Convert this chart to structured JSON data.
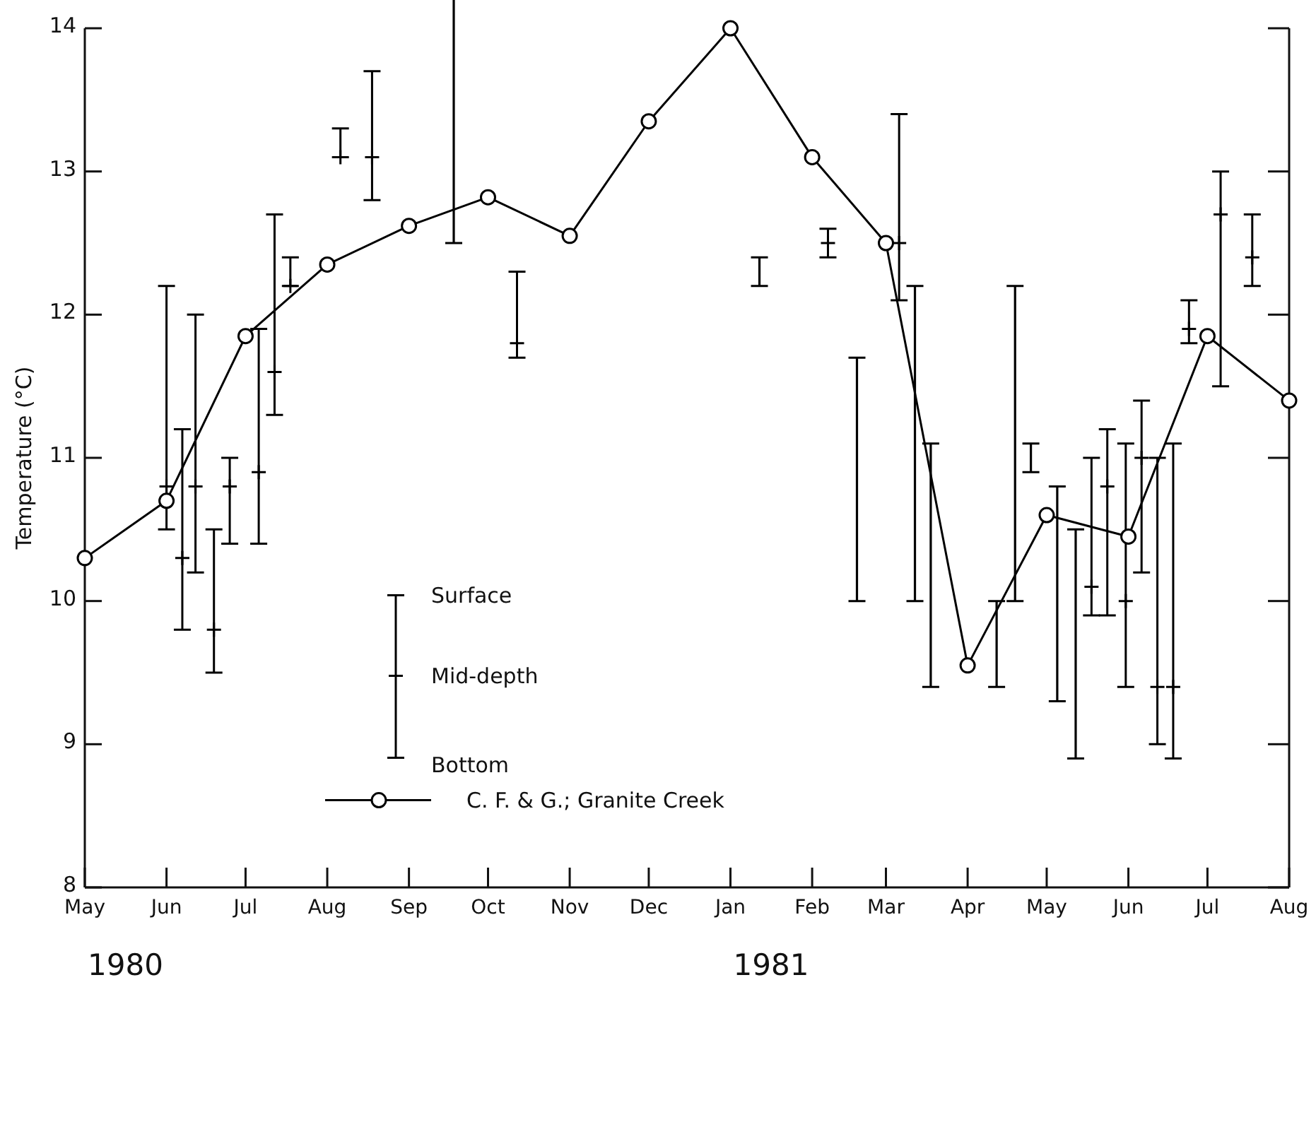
{
  "chart_data": {
    "type": "line",
    "ylabel": "Temperature (°C)",
    "xlim": [
      "1980-05-01",
      "1981-08-01"
    ],
    "xticks": [
      {
        "value": "1980-05-01",
        "label": "May"
      },
      {
        "value": "1980-06-01",
        "label": "Jun"
      },
      {
        "value": "1980-07-01",
        "label": "Jul"
      },
      {
        "value": "1980-08-01",
        "label": "Aug"
      },
      {
        "value": "1980-09-01",
        "label": "Sep"
      },
      {
        "value": "1980-10-01",
        "label": "Oct"
      },
      {
        "value": "1980-11-01",
        "label": "Nov"
      },
      {
        "value": "1980-12-01",
        "label": "Dec"
      },
      {
        "value": "1981-01-01",
        "label": "Jan"
      },
      {
        "value": "1981-02-01",
        "label": "Feb"
      },
      {
        "value": "1981-03-01",
        "label": "Mar"
      },
      {
        "value": "1981-04-01",
        "label": "Apr"
      },
      {
        "value": "1981-05-01",
        "label": "May"
      },
      {
        "value": "1981-06-01",
        "label": "Jun"
      },
      {
        "value": "1981-07-01",
        "label": "Jul"
      },
      {
        "value": "1981-08-01",
        "label": "Aug"
      }
    ],
    "ylim": [
      8,
      14
    ],
    "yticks": [
      8,
      9,
      10,
      11,
      12,
      13,
      14
    ],
    "grid": false,
    "legend": "bottom left",
    "annotations": [
      "Surface",
      "Mid-depth",
      "Bottom",
      "1980",
      "1981"
    ],
    "series": [
      {
        "type": "scatter",
        "marker": "cross",
        "color": "#000000",
        "x": [
          "1980-06-01",
          "1980-06-07",
          "1980-06-12",
          "1980-06-19",
          "1980-06-25",
          "1980-07-06",
          "1980-07-12",
          "1980-07-18",
          "1980-08-06",
          "1980-08-18",
          "1980-10-12",
          "1981-02-07",
          "1981-03-06",
          "1981-05-18",
          "1981-05-24",
          "1981-05-31",
          "1981-06-06",
          "1981-06-12",
          "1981-06-18",
          "1981-06-24",
          "1981-07-06",
          "1981-07-18"
        ],
        "values": [
          10.8,
          10.3,
          10.8,
          9.8,
          10.8,
          10.9,
          11.6,
          12.2,
          13.1,
          13.1,
          11.8,
          12.5,
          12.5,
          10.1,
          10.8,
          10.0,
          11.0,
          9.4,
          9.4,
          11.9,
          12.7,
          12.4
        ],
        "errors": [
          [
            10.5,
            12.2
          ],
          [
            9.8,
            11.2
          ],
          [
            10.2,
            12.0
          ],
          [
            9.5,
            10.5
          ],
          [
            10.4,
            11.0
          ],
          [
            10.4,
            11.9
          ],
          [
            11.3,
            12.7
          ],
          [
            12.2,
            12.4
          ],
          [
            13.1,
            13.3
          ],
          [
            12.8,
            13.7
          ],
          [
            11.7,
            12.3
          ],
          [
            12.4,
            12.6
          ],
          [
            12.1,
            13.4
          ],
          [
            9.9,
            11.0
          ],
          [
            9.9,
            11.2
          ],
          [
            9.4,
            11.1
          ],
          [
            10.2,
            11.4
          ],
          [
            9.0,
            11.0
          ],
          [
            8.9,
            11.1
          ],
          [
            11.8,
            12.1
          ],
          [
            11.5,
            13.0
          ],
          [
            12.2,
            12.7
          ]
        ]
      },
      {
        "type": "bar",
        "color": "#000000",
        "x": [
          "1980-09-18",
          "1981-01-12",
          "1981-02-18",
          "1981-03-12",
          "1981-03-18",
          "1981-04-12",
          "1981-04-19",
          "1981-04-25",
          "1981-05-05",
          "1981-05-12"
        ],
        "base": [
          12.5,
          12.2,
          10.0,
          10.0,
          9.4,
          9.4,
          10.0,
          10.9,
          9.3,
          8.9
        ],
        "values": [
          1.8,
          0.2,
          1.7,
          2.2,
          1.7,
          0.6,
          2.2,
          0.2,
          1.5,
          1.6
        ]
      },
      {
        "name": "C. F. & G.; Granite Creek",
        "marker": "circle",
        "color": "#000000",
        "x": [
          "1980-05-01",
          "1980-06-01",
          "1980-07-01",
          "1980-08-01",
          "1980-09-01",
          "1980-10-01",
          "1980-11-01",
          "1980-12-01",
          "1981-01-01",
          "1981-02-01",
          "1981-03-01",
          "1981-04-01",
          "1981-05-01",
          "1981-06-01",
          "1981-07-01",
          "1981-08-01"
        ],
        "values": [
          10.3,
          10.7,
          11.85,
          12.35,
          12.62,
          12.82,
          12.55,
          13.35,
          14.0,
          13.1,
          12.5,
          9.55,
          10.6,
          10.45,
          11.85,
          11.4
        ]
      }
    ]
  }
}
